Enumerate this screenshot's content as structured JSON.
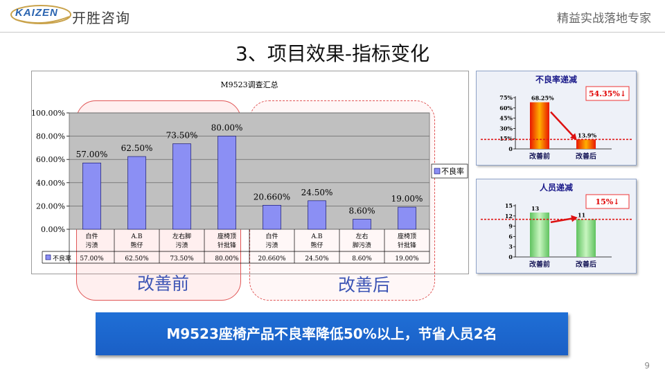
{
  "header": {
    "logo_text": "KAIZEN",
    "brand_cn": "开胜咨询",
    "slogan": "精益实战落地专家"
  },
  "page_title": "3、项目效果-指标变化",
  "ovals": {
    "before_label": "改善前",
    "after_label": "改善后"
  },
  "colors": {
    "bar_blue": "#8b8ff4",
    "plot_bg": "#c0c0c0",
    "red_bar": "#ff2a00",
    "green_bar": "#7ed87e",
    "banner_blue": "#1a5fc6",
    "dashed_red": "#e01818"
  },
  "banner_text": "M9523座椅产品不良率降低50%以上，节省人员2名",
  "page_number": "9",
  "chart_data": [
    {
      "type": "bar",
      "title": "M9523调查汇总",
      "categories": [
        "白件污渍",
        "A.B熊仔",
        "左右脚污渍",
        "座椅顶针批锋",
        "白件污渍",
        "A.B熊仔",
        "左右脚污渍",
        "座椅顶针批锋"
      ],
      "category_lines": [
        [
          "白件",
          "污渍"
        ],
        [
          "A.B",
          "熊仔"
        ],
        [
          "左右脚",
          "污渍"
        ],
        [
          "座椅顶",
          "针批锋"
        ],
        [
          "白件",
          "污渍"
        ],
        [
          "A.B",
          "熊仔"
        ],
        [
          "左右",
          "脚污渍"
        ],
        [
          "座椅顶",
          "针批锋"
        ]
      ],
      "series": [
        {
          "name": "不良率",
          "values": [
            57.0,
            62.5,
            73.5,
            80.0,
            20.66,
            24.5,
            8.6,
            19.0
          ]
        }
      ],
      "data_labels": [
        "57.00%",
        "62.50%",
        "73.50%",
        "80.00%",
        "20.660%",
        "24.50%",
        "8.60%",
        "19.00%"
      ],
      "y_ticks": [
        "0.00%",
        "20.00%",
        "40.00%",
        "60.00%",
        "80.00%",
        "100.00%"
      ],
      "ylim": [
        0,
        100
      ],
      "legend": "right",
      "table_header": "不良率"
    },
    {
      "type": "bar",
      "title": "不良率递减",
      "categories": [
        "改善前",
        "改善后"
      ],
      "values": [
        68.25,
        13.9
      ],
      "data_labels": [
        "68.25%",
        "13.9%"
      ],
      "y_ticks": [
        "0",
        "15%",
        "30%",
        "45%",
        "60%",
        "75%"
      ],
      "ylim": [
        0,
        75
      ],
      "reference_line": 13.9,
      "callout": "54.35%↓"
    },
    {
      "type": "bar",
      "title": "人员递减",
      "categories": [
        "改善前",
        "改善后"
      ],
      "values": [
        13,
        11
      ],
      "data_labels": [
        "13",
        "11"
      ],
      "y_ticks": [
        "0",
        "3",
        "6",
        "9",
        "12",
        "15"
      ],
      "ylim": [
        0,
        15
      ],
      "reference_line": 11,
      "callout": "15%↓"
    }
  ]
}
